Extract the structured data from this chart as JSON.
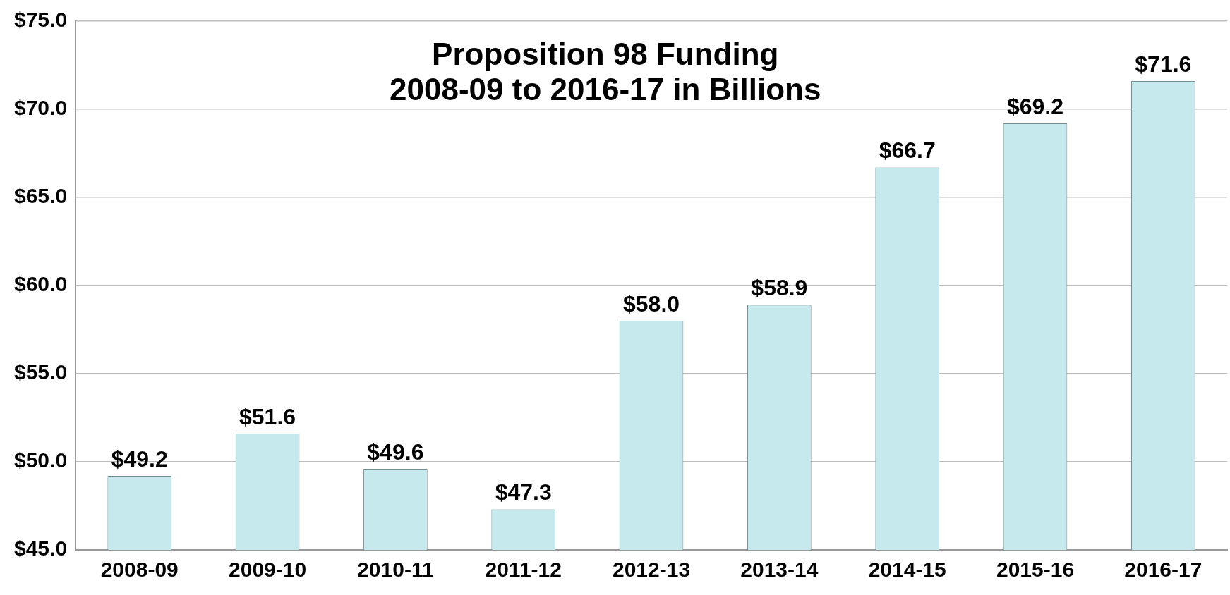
{
  "chart_data": {
    "type": "bar",
    "title": "Proposition 98 Funding\n2008-09 to 2016-17 in Billions",
    "categories": [
      "2008-09",
      "2009-10",
      "2010-11",
      "2011-12",
      "2012-13",
      "2013-14",
      "2014-15",
      "2015-16",
      "2016-17"
    ],
    "values": [
      49.2,
      51.6,
      49.6,
      47.3,
      58.0,
      58.9,
      66.7,
      69.2,
      71.6
    ],
    "value_labels": [
      "$49.2",
      "$51.6",
      "$49.6",
      "$47.3",
      "$58.0",
      "$58.9",
      "$66.7",
      "$69.2",
      "$71.6"
    ],
    "color": "#c5e9ed",
    "ylim": [
      45,
      75
    ],
    "yticks": [
      {
        "value": 45,
        "label": "$45.0"
      },
      {
        "value": 50,
        "label": "$50.0"
      },
      {
        "value": 55,
        "label": "$55.0"
      },
      {
        "value": 60,
        "label": "$60.0"
      },
      {
        "value": 65,
        "label": "$65.0"
      },
      {
        "value": 70,
        "label": "$70.0"
      },
      {
        "value": 75,
        "label": "$75.0"
      }
    ],
    "grid": "y",
    "legend": false
  }
}
